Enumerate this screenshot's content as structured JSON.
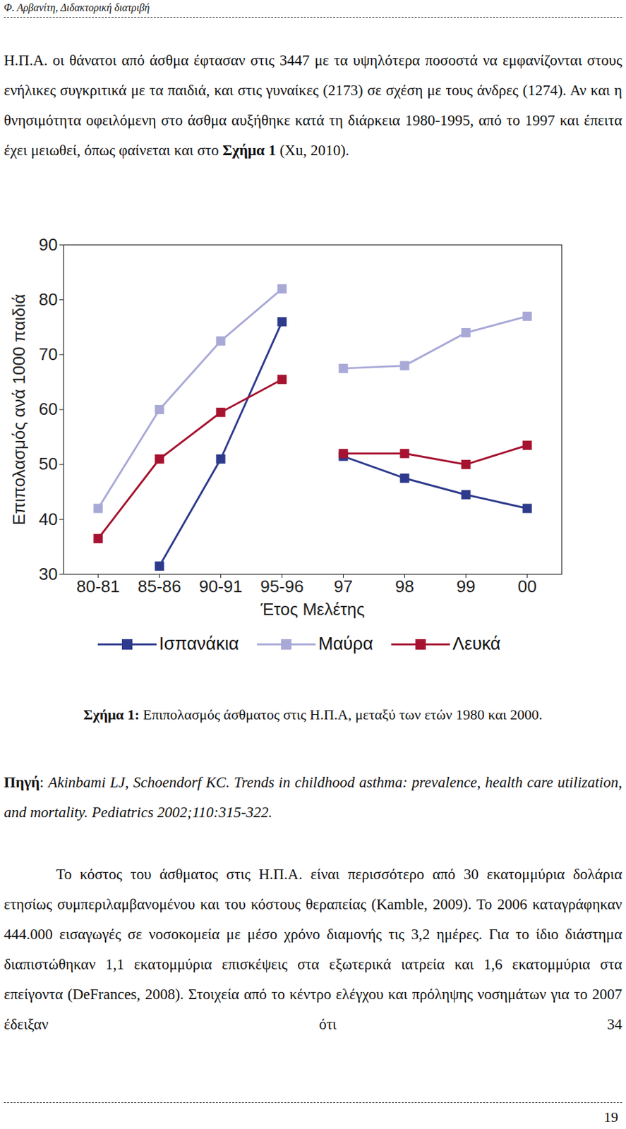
{
  "header": "Φ. Αρβανίτη, Διδακτορική διατριβή",
  "paragraph_1": [
    {
      "text": "Η.Π.Α. οι θάνατοι από άσθμα έφτασαν  στις 3447 με τα υψηλότερα ποσοστά να εμφανίζονται στους ενήλικες συγκριτικά με τα παιδιά, και στις γυναίκες (2173) σε σχέση με τους άνδρες (1274). Αν και η θνησιμότητα οφειλόμενη στο άσθμα αυξήθηκε κατά τη διάρκεια 1980-1995, από το 1997 και έπειτα έχει μειωθεί, όπως φαίνεται και στο ",
      "style": "normal"
    },
    {
      "text": "Σχήμα 1",
      "style": "bold"
    },
    {
      "text": " (Xu, 2010).",
      "style": "normal"
    }
  ],
  "chart_data": {
    "type": "line",
    "y_label": "Επιπολασμός ανά 1000 παιδιά",
    "x_label": "Έτος Μελέτης",
    "category_groups": [
      [
        "80-81",
        "85-86",
        "90-91",
        "95-96"
      ],
      [
        "97",
        "98",
        "99",
        "00"
      ]
    ],
    "ylim": [
      30,
      90
    ],
    "yticks": [
      30,
      40,
      50,
      60,
      70,
      80,
      90
    ],
    "grid": false,
    "legend": "bottom",
    "marker": "square",
    "series": [
      {
        "name": "Ισπανάκια",
        "color": "#2e3a8c",
        "values": [
          null,
          31.5,
          51,
          76,
          51.5,
          47.5,
          44.5,
          42
        ]
      },
      {
        "name": "Μαύρα",
        "color": "#a9a9d8",
        "values": [
          42,
          60,
          72.5,
          82,
          67.5,
          68,
          74,
          77
        ]
      },
      {
        "name": "Λευκά",
        "color": "#a6122f",
        "values": [
          36.5,
          51,
          59.5,
          65.5,
          52,
          52,
          50,
          53.5
        ]
      }
    ]
  },
  "caption": [
    {
      "text": "Σχήμα 1:",
      "style": "bold"
    },
    {
      "text": " Επιπολασμός άσθματος στις Η.Π.Α, μεταξύ των ετών 1980 και 2000.",
      "style": "normal"
    }
  ],
  "source": [
    {
      "text": "Πηγή",
      "style": "bold"
    },
    {
      "text": ": ",
      "style": "normal"
    },
    {
      "text": "Akinbami LJ, Schoendorf KC. Trends in childhood asthma: prevalence, health care utilization, and mortality. Pediatrics 2002;110:315-322.",
      "style": "italic"
    }
  ],
  "paragraph_2": "Το κόστος του άσθματος στις Η.Π.Α. είναι περισσότερο από 30 εκατομμύρια δολάρια ετησίως συμπεριλαμβανομένου και του κόστους θεραπείας (Kamble, 2009). Το 2006 καταγράφηκαν 444.000 εισαγωγές σε νοσοκομεία με μέσο χρόνο διαμονής τις 3,2 ημέρες. Για το ίδιο διάστημα διαπιστώθηκαν 1,1 εκατομμύρια επισκέψεις στα εξωτερικά ιατρεία και 1,6 εκατομμύρια στα επείγοντα (DeFrances, 2008). Στοιχεία από το κέντρο ελέγχου και πρόληψης νοσημάτων για το 2007 έδειξαν ότι 34",
  "page_number": "19"
}
